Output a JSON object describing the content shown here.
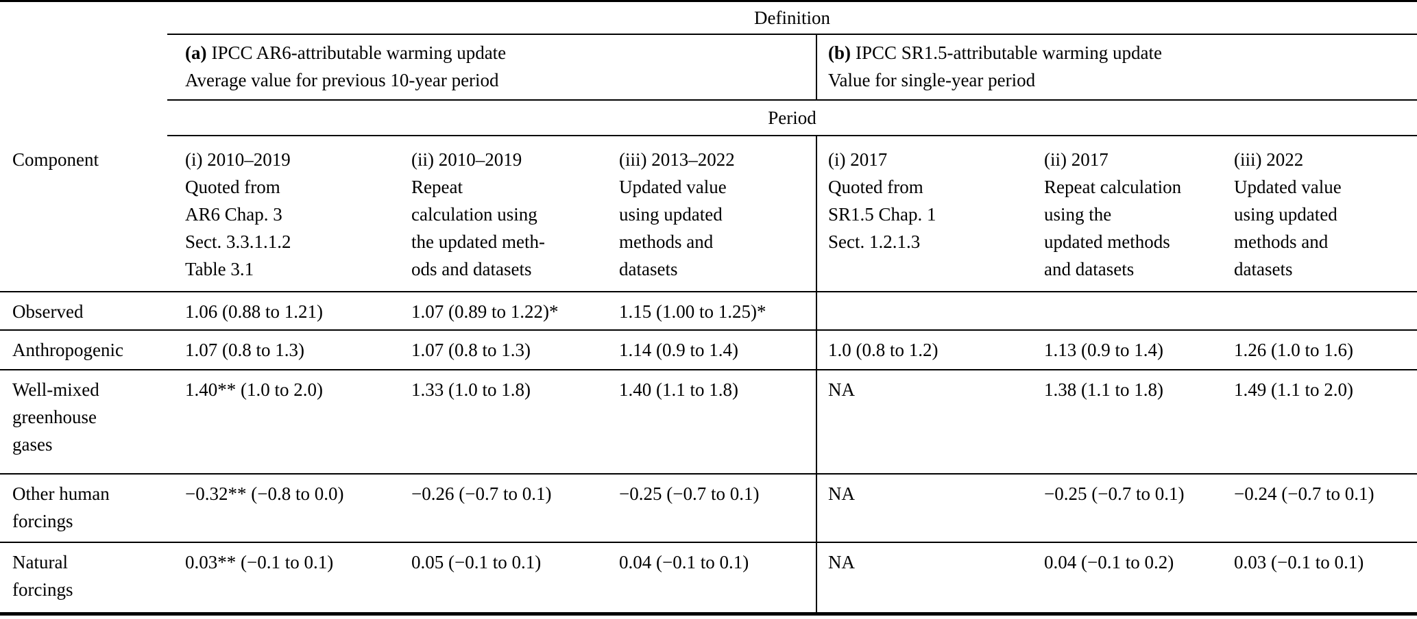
{
  "table": {
    "definition_label": "Definition",
    "period_label": "Period",
    "component_header": "Component",
    "section_a": {
      "tag": "(a)",
      "title": "IPCC AR6-attributable warming update",
      "subtitle": "Average value for previous 10-year period"
    },
    "section_b": {
      "tag": "(b)",
      "title": "IPCC SR1.5-attributable warming update",
      "subtitle": "Value for single-year period"
    },
    "column_headers": [
      "(i) 2010–2019\nQuoted from\nAR6 Chap. 3\nSect. 3.3.1.1.2\nTable 3.1",
      "(ii) 2010–2019\nRepeat\ncalculation using\nthe updated meth-\nods and datasets",
      "(iii) 2013–2022\nUpdated value\nusing updated\nmethods and\ndatasets",
      "(i) 2017\nQuoted from\nSR1.5 Chap. 1\nSect. 1.2.1.3",
      "(ii) 2017\nRepeat calculation\nusing the\nupdated methods\nand datasets",
      "(iii) 2022\nUpdated value\nusing updated\nmethods and\ndatasets"
    ],
    "rows": [
      {
        "component": "Observed",
        "cells": [
          "1.06 (0.88 to 1.21)",
          "1.07 (0.89 to 1.22)*",
          "1.15 (1.00 to 1.25)*",
          "",
          "",
          ""
        ]
      },
      {
        "component": "Anthropogenic",
        "cells": [
          "1.07 (0.8 to 1.3)",
          "1.07 (0.8 to 1.3)",
          "1.14 (0.9 to 1.4)",
          "1.0 (0.8 to 1.2)",
          "1.13 (0.9 to 1.4)",
          "1.26 (1.0 to 1.6)"
        ]
      },
      {
        "component": "Well-mixed\ngreenhouse\ngases",
        "cells": [
          "1.40** (1.0 to 2.0)",
          "1.33 (1.0 to 1.8)",
          "1.40 (1.1 to 1.8)",
          "NA",
          "1.38 (1.1 to 1.8)",
          "1.49 (1.1 to 2.0)"
        ]
      },
      {
        "component": "Other human\nforcings",
        "cells": [
          "−0.32** (−0.8 to 0.0)",
          "−0.26 (−0.7 to 0.1)",
          "−0.25 (−0.7 to 0.1)",
          "NA",
          "−0.25 (−0.7 to 0.1)",
          "−0.24 (−0.7 to 0.1)"
        ]
      },
      {
        "component": "Natural\nforcings",
        "cells": [
          "0.03** (−0.1 to 0.1)",
          "0.05 (−0.1 to 0.1)",
          "0.04 (−0.1 to 0.1)",
          "NA",
          "0.04 (−0.1 to 0.2)",
          "0.03 (−0.1 to 0.1)"
        ]
      }
    ]
  }
}
